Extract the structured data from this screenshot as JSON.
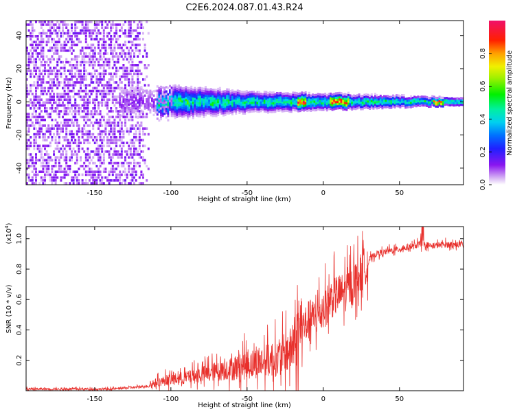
{
  "title": "C2E6.2024.087.01.43.R24",
  "chart_data": [
    {
      "type": "heatmap",
      "xlabel": "Height of straight line (km)",
      "ylabel": "Frequency (Hz)",
      "xlim": [
        -195,
        92
      ],
      "ylim": [
        -50,
        49
      ],
      "x_ticks": [
        -150,
        -100,
        -50,
        0,
        50
      ],
      "y_ticks": [
        -40,
        -20,
        0,
        20,
        40
      ],
      "x_tick_labels": [
        "-150",
        "-100",
        "-50",
        "0",
        "50"
      ],
      "y_tick_labels": [
        "-40",
        "-20",
        "0",
        "20",
        "40"
      ],
      "colorbar": {
        "label": "Normalized spectral amplitude",
        "range": [
          0,
          1
        ],
        "ticks": [
          0.0,
          0.2,
          0.4,
          0.6,
          0.8
        ],
        "tick_labels": [
          "0.0",
          "0.2",
          "0.4",
          "0.6",
          "0.8"
        ],
        "colormap": "rainbow (white-purple-blue-cyan-green-yellow-red-magenta)"
      },
      "features": [
        {
          "x_range": [
            -195,
            -115
          ],
          "description": "scattered low amplitude noise across all frequencies"
        },
        {
          "x_range": [
            -115,
            92
          ],
          "center_frequency_hz": 0,
          "description": "narrow band near 0 Hz narrowing with height, peak amplitude near 0.9 around -15, 10 and 75 km"
        }
      ]
    },
    {
      "type": "line",
      "xlabel": "Height of straight line (km)",
      "ylabel": "SNR (10 * v/v)",
      "y_scale_label": "(x10",
      "y_scale_exponent": "4",
      "y_scale_close": ")",
      "xlim": [
        -195,
        92
      ],
      "ylim": [
        0,
        1.08
      ],
      "x_ticks": [
        -150,
        -100,
        -50,
        0,
        50
      ],
      "y_ticks": [
        0.2,
        0.4,
        0.6,
        0.8,
        1.0
      ],
      "x_tick_labels": [
        "-150",
        "-100",
        "-50",
        "0",
        "50"
      ],
      "y_tick_labels": [
        "0.2",
        "0.4",
        "0.6",
        "0.8",
        "1.0"
      ],
      "series": [
        {
          "color": "#e8302c",
          "x": [
            -195,
            -180,
            -160,
            -140,
            -125,
            -115,
            -110,
            -100,
            -90,
            -80,
            -70,
            -60,
            -50,
            -40,
            -30,
            -20,
            -15,
            -10,
            -5,
            0,
            5,
            10,
            15,
            20,
            25,
            30,
            35,
            40,
            50,
            60,
            65,
            70,
            80,
            92
          ],
          "y": [
            0.01,
            0.01,
            0.01,
            0.01,
            0.02,
            0.03,
            0.05,
            0.07,
            0.08,
            0.1,
            0.12,
            0.14,
            0.16,
            0.18,
            0.2,
            0.26,
            0.38,
            0.45,
            0.47,
            0.52,
            0.59,
            0.62,
            0.64,
            0.7,
            0.76,
            0.86,
            0.9,
            0.91,
            0.93,
            0.95,
            0.97,
            0.95,
            0.96,
            0.96
          ]
        }
      ]
    }
  ]
}
